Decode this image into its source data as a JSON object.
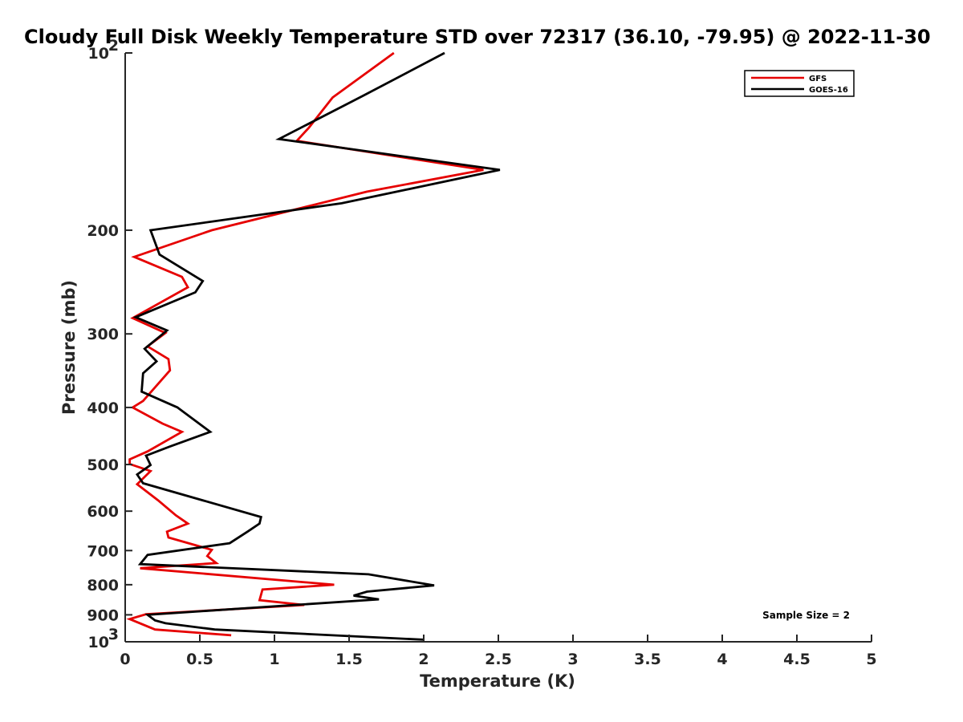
{
  "chart_data": {
    "type": "line",
    "title": "Cloudy Full Disk Weekly Temperature STD over 72317 (36.10, -79.95) @ 2022-11-30",
    "xlabel": "Temperature (K)",
    "ylabel": "Pressure (mb)",
    "xlim": [
      0,
      5
    ],
    "ylim": [
      100,
      1000
    ],
    "y_scale": "log",
    "y_reversed": true,
    "grid": false,
    "legend_position": "top-right",
    "x_ticks": [
      "0",
      "0.5",
      "1",
      "1.5",
      "2",
      "2.5",
      "3",
      "3.5",
      "4",
      "4.5",
      "5"
    ],
    "y_ticks": [
      {
        "value": 100,
        "label": "10",
        "sup": "2"
      },
      {
        "value": 200,
        "label": "200",
        "sup": ""
      },
      {
        "value": 300,
        "label": "300",
        "sup": ""
      },
      {
        "value": 400,
        "label": "400",
        "sup": ""
      },
      {
        "value": 500,
        "label": "500",
        "sup": ""
      },
      {
        "value": 600,
        "label": "600",
        "sup": ""
      },
      {
        "value": 700,
        "label": "700",
        "sup": ""
      },
      {
        "value": 800,
        "label": "800",
        "sup": ""
      },
      {
        "value": 900,
        "label": "900",
        "sup": ""
      },
      {
        "value": 1000,
        "label": "10",
        "sup": "3"
      }
    ],
    "annotation": "Sample Size = 2",
    "series": [
      {
        "name": "GFS",
        "color": "#e60000",
        "points": [
          [
            1.8,
            100
          ],
          [
            1.39,
            119
          ],
          [
            1.23,
            134
          ],
          [
            1.15,
            141
          ],
          [
            2.4,
            158
          ],
          [
            1.62,
            172
          ],
          [
            0.58,
            200
          ],
          [
            0.06,
            222
          ],
          [
            0.38,
            240
          ],
          [
            0.42,
            250
          ],
          [
            0.05,
            282
          ],
          [
            0.27,
            299
          ],
          [
            0.15,
            315
          ],
          [
            0.29,
            331
          ],
          [
            0.3,
            346
          ],
          [
            0.12,
            390
          ],
          [
            0.05,
            400
          ],
          [
            0.25,
            426
          ],
          [
            0.38,
            440
          ],
          [
            0.15,
            475
          ],
          [
            0.03,
            490
          ],
          [
            0.03,
            499
          ],
          [
            0.17,
            513
          ],
          [
            0.08,
            540
          ],
          [
            0.22,
            575
          ],
          [
            0.34,
            610
          ],
          [
            0.42,
            630
          ],
          [
            0.28,
            650
          ],
          [
            0.29,
            665
          ],
          [
            0.58,
            698
          ],
          [
            0.55,
            715
          ],
          [
            0.61,
            735
          ],
          [
            0.1,
            750
          ],
          [
            1.4,
            800
          ],
          [
            0.92,
            815
          ],
          [
            0.9,
            850
          ],
          [
            1.2,
            866
          ],
          [
            0.14,
            898
          ],
          [
            0.03,
            915
          ],
          [
            0.2,
            953
          ],
          [
            0.71,
            975
          ]
        ]
      },
      {
        "name": "GOES-16",
        "color": "#000000",
        "points": [
          [
            2.14,
            100
          ],
          [
            1.6,
            118
          ],
          [
            1.03,
            140
          ],
          [
            2.51,
            158
          ],
          [
            1.45,
            180
          ],
          [
            0.17,
            200
          ],
          [
            0.23,
            220
          ],
          [
            0.52,
            244
          ],
          [
            0.47,
            255
          ],
          [
            0.07,
            281
          ],
          [
            0.28,
            296
          ],
          [
            0.13,
            318
          ],
          [
            0.21,
            334
          ],
          [
            0.12,
            350
          ],
          [
            0.11,
            376
          ],
          [
            0.35,
            400
          ],
          [
            0.57,
            440
          ],
          [
            0.3,
            466
          ],
          [
            0.14,
            483
          ],
          [
            0.17,
            501
          ],
          [
            0.08,
            520
          ],
          [
            0.12,
            538
          ],
          [
            0.91,
            614
          ],
          [
            0.9,
            630
          ],
          [
            0.82,
            650
          ],
          [
            0.7,
            680
          ],
          [
            0.15,
            712
          ],
          [
            0.1,
            738
          ],
          [
            1.63,
            768
          ],
          [
            2.07,
            802
          ],
          [
            1.62,
            822
          ],
          [
            1.53,
            835
          ],
          [
            1.7,
            847
          ],
          [
            0.15,
            900
          ],
          [
            0.2,
            920
          ],
          [
            0.27,
            930
          ],
          [
            0.6,
            953
          ],
          [
            2.0,
            992
          ]
        ]
      }
    ]
  }
}
